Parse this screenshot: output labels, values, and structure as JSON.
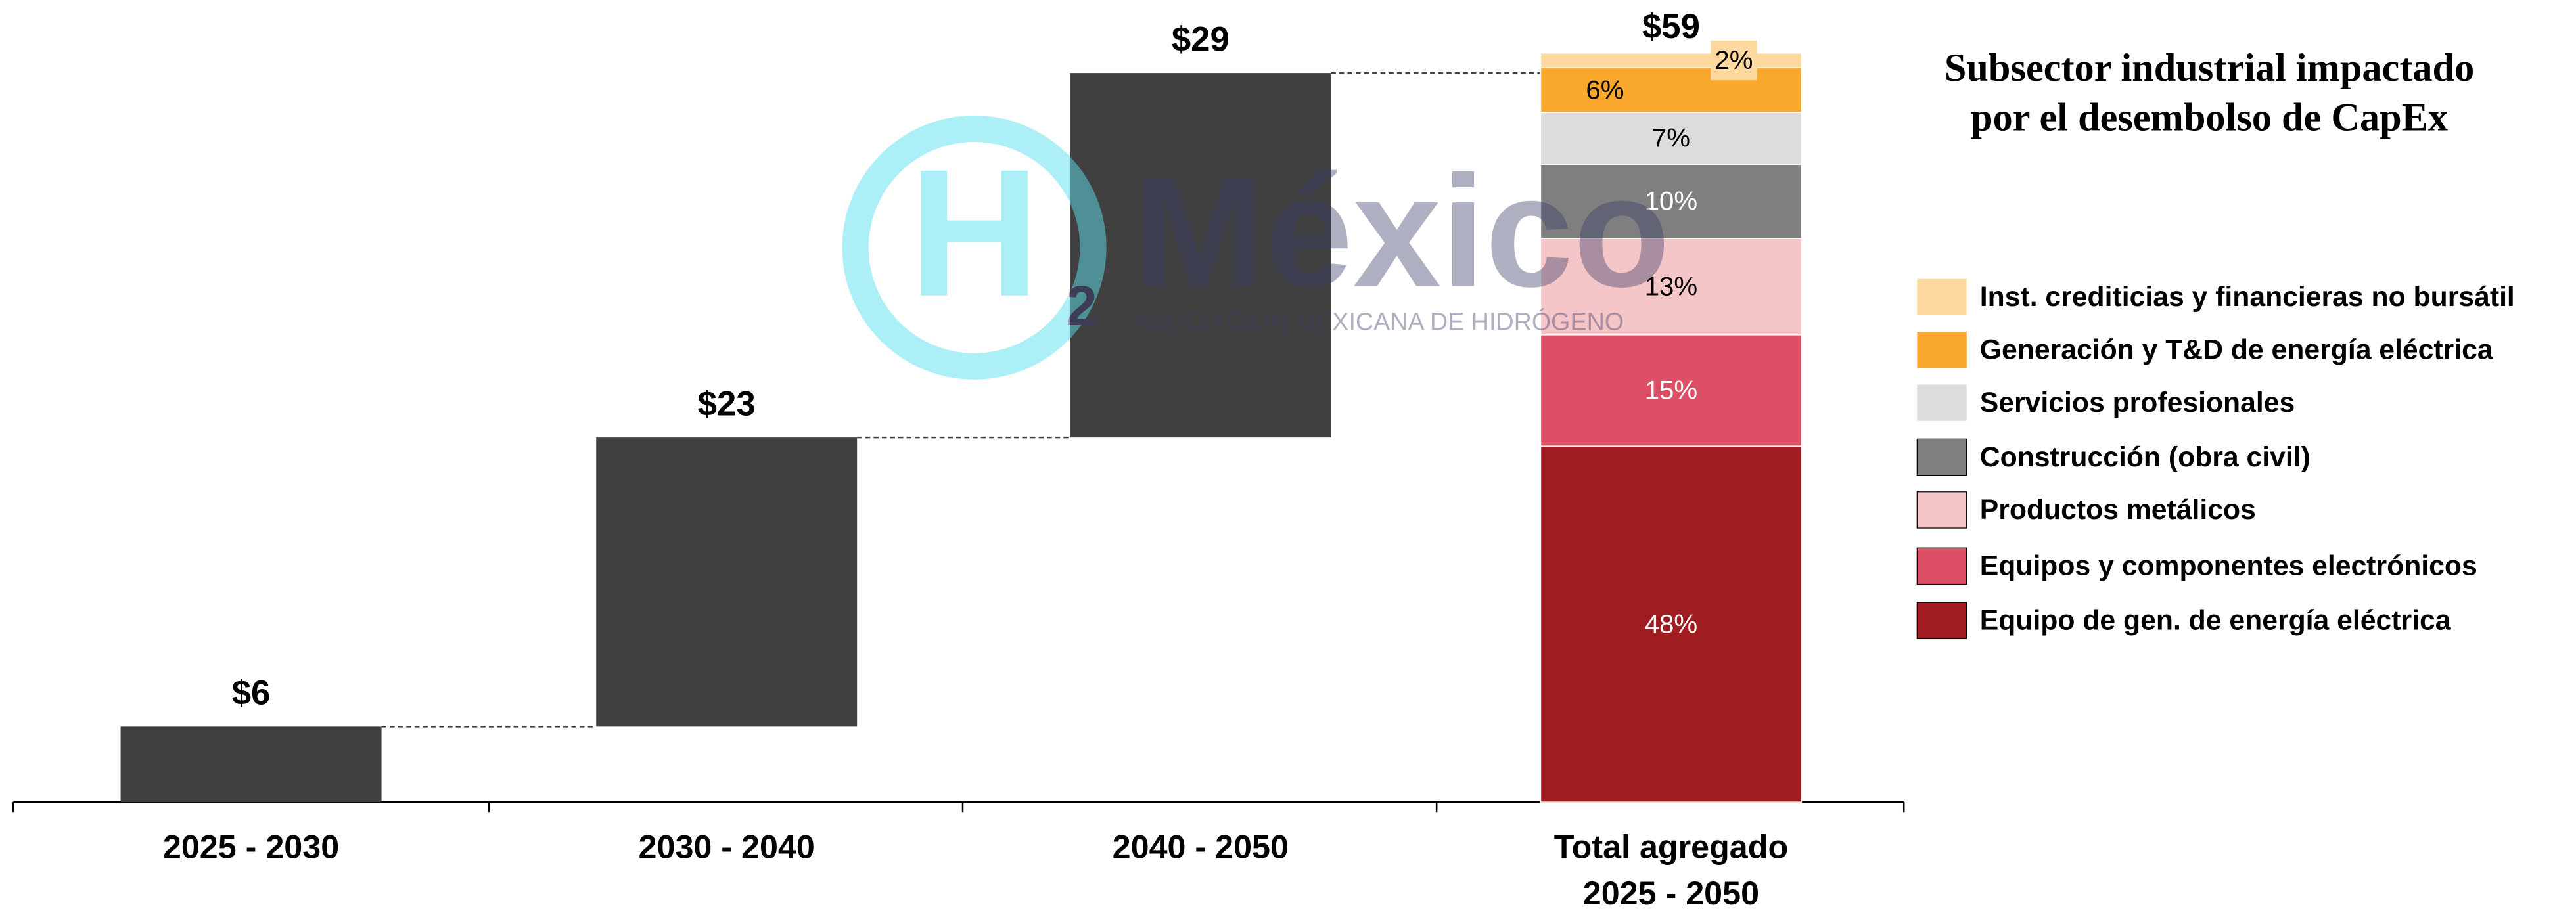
{
  "chart_data": {
    "type": "waterfall",
    "title": "Subsector industrial impactado por el desembolso de CapEx",
    "categories": [
      "2025 - 2030",
      "2030 - 2040",
      "2040 - 2050",
      "Total agregado\n2025 - 2050"
    ],
    "values": [
      6,
      23,
      29,
      59
    ],
    "value_labels": [
      "$6",
      "$23",
      "$29",
      "$59"
    ],
    "color": "#404040",
    "ylim": [
      0,
      60
    ],
    "breakdown": [
      {
        "name": "Equipo de gen. de energía eléctrica",
        "color": "#a01c20",
        "value": 48,
        "value_label": "48%",
        "label_color": "#ffffff"
      },
      {
        "name": "Equipos y componentes electrónicos",
        "color": "#dc4f65",
        "value": 15,
        "value_label": "15%",
        "label_color": "#ffffff"
      },
      {
        "name": "Productos metálicos",
        "color": "#f5c6c8",
        "value": 13,
        "value_label": "13%",
        "label_color": "#000000"
      },
      {
        "name": "Construcción (obra civil)",
        "color": "#7f7f7f",
        "value": 10,
        "value_label": "10%",
        "label_color": "#ffffff"
      },
      {
        "name": "Servicios profesionales",
        "color": "#dcdcdc",
        "value": 7,
        "value_label": "7%",
        "label_color": "#000000"
      },
      {
        "name": "Generación y T&D de energía eléctrica",
        "color": "#f9a82b",
        "value": 6,
        "value_label": "6%",
        "label_color": "#000000"
      },
      {
        "name": "Inst. crediticias y financieras no bursátil",
        "color": "#fdd9a0",
        "value": 2,
        "value_label": "2%",
        "label_color": "#000000"
      }
    ]
  },
  "watermark": {
    "letter": "H",
    "subscript": "2",
    "name": "México",
    "tagline": "ASOCIACIÓN MEXICANA DE HIDRÓGENO"
  }
}
